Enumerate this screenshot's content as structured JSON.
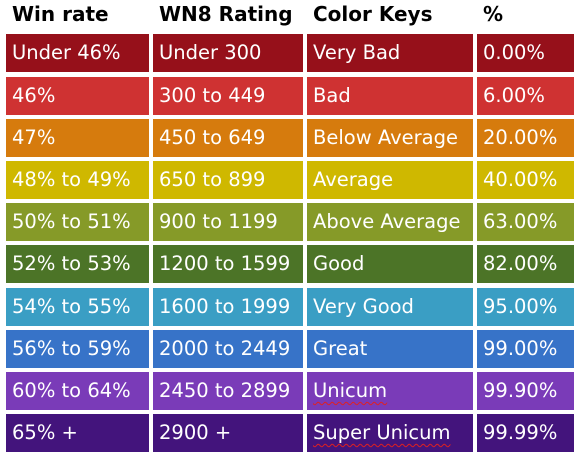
{
  "headers": [
    "Win rate",
    "WN8 Rating",
    "Color Keys",
    "%"
  ],
  "rows": [
    {
      "win_rate": "Under 46%",
      "wn8": "Under 300",
      "color_key": "Very Bad",
      "pct": "0.00%",
      "color": "#96101a"
    },
    {
      "win_rate": "46%",
      "wn8": "300 to 449",
      "color_key": "Bad",
      "pct": "6.00%",
      "color": "#cf3232"
    },
    {
      "win_rate": "47%",
      "wn8": "450 to 649",
      "color_key": "Below Average",
      "pct": "20.00%",
      "color": "#d67b0d"
    },
    {
      "win_rate": "48% to 49%",
      "wn8": "650 to 899",
      "color_key": "Average",
      "pct": "40.00%",
      "color": "#cfb800"
    },
    {
      "win_rate": "50% to 51%",
      "wn8": "900 to 1199",
      "color_key": "Above Average",
      "pct": "63.00%",
      "color": "#869a28"
    },
    {
      "win_rate": "52% to 53%",
      "wn8": "1200 to 1599",
      "color_key": "Good",
      "pct": "82.00%",
      "color": "#4c7427"
    },
    {
      "win_rate": "54% to 55%",
      "wn8": "1600 to 1999",
      "color_key": "Very Good",
      "pct": "95.00%",
      "color": "#3a9ec4"
    },
    {
      "win_rate": "56% to 59%",
      "wn8": "2000 to 2449",
      "color_key": "Great",
      "pct": "99.00%",
      "color": "#3773c8"
    },
    {
      "win_rate": "60% to 64%",
      "wn8": "2450 to 2899",
      "color_key": "Unicum",
      "pct": "99.90%",
      "color": "#7a3bb8",
      "underline_key": true
    },
    {
      "win_rate": "65% +",
      "wn8": "2900 +",
      "color_key": "Super Unicum",
      "pct": "99.99%",
      "color": "#43147c",
      "underline_key": true
    }
  ]
}
